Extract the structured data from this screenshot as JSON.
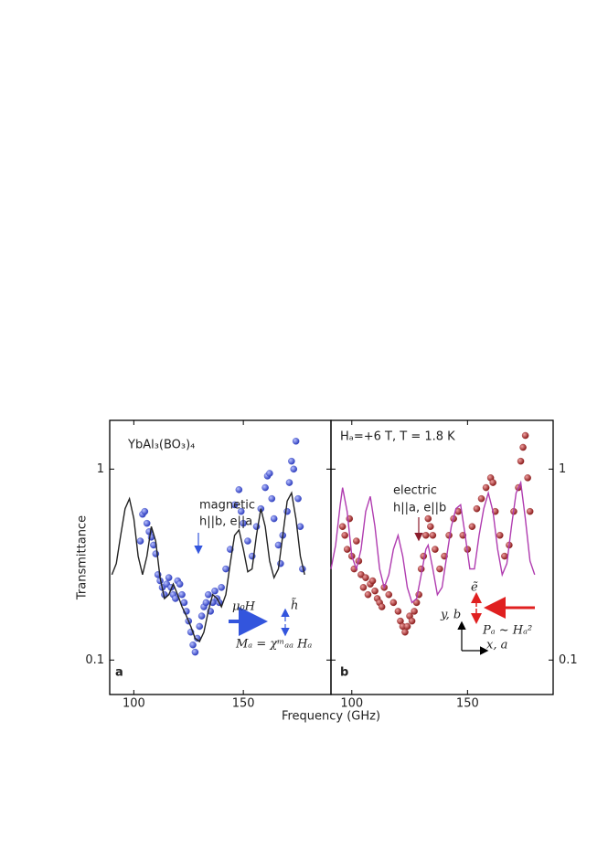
{
  "chart_data": [
    {
      "type": "scatter",
      "title": "YbAl₃(BO₃)₄",
      "panel_label": "a",
      "xlabel": "Frequency (GHz)",
      "ylabel": "Transmittance",
      "log_y": true,
      "xlim": [
        89,
        190
      ],
      "ylim": [
        0.066,
        1.8
      ],
      "xticks": [
        100,
        150
      ],
      "yticks": [
        0.1,
        1
      ],
      "annotations": [
        "magnetic",
        "h||b, e||a",
        "μ₀H",
        "h̃",
        "Mₐ = χᵐₐₐ Hₐ"
      ],
      "series": [
        {
          "mode": "markers",
          "color": "#2f3fbf",
          "x": [
            103,
            104,
            105,
            106,
            107,
            108,
            109,
            110,
            111,
            112,
            113,
            114,
            115,
            116,
            117,
            118,
            119,
            120,
            121,
            122,
            123,
            124,
            125,
            126,
            127,
            128,
            129,
            130,
            131,
            132,
            133,
            134,
            135,
            136,
            137,
            138,
            139,
            140,
            142,
            144,
            146,
            148,
            149,
            150,
            152,
            154,
            156,
            158,
            160,
            161,
            162,
            163,
            164,
            166,
            167,
            168,
            170,
            171,
            172,
            173,
            174,
            175,
            176,
            177
          ],
          "values": [
            0.42,
            0.58,
            0.6,
            0.52,
            0.47,
            0.44,
            0.4,
            0.36,
            0.28,
            0.26,
            0.24,
            0.22,
            0.25,
            0.27,
            0.24,
            0.22,
            0.21,
            0.26,
            0.25,
            0.22,
            0.2,
            0.18,
            0.16,
            0.14,
            0.12,
            0.11,
            0.13,
            0.15,
            0.17,
            0.19,
            0.2,
            0.22,
            0.18,
            0.2,
            0.23,
            0.21,
            0.2,
            0.24,
            0.3,
            0.38,
            0.65,
            0.78,
            0.6,
            0.52,
            0.42,
            0.35,
            0.5,
            0.62,
            0.8,
            0.92,
            0.95,
            0.7,
            0.55,
            0.4,
            0.32,
            0.45,
            0.6,
            0.85,
            1.1,
            1.0,
            1.4,
            0.7,
            0.5,
            0.3
          ]
        },
        {
          "mode": "line",
          "color": "#222222",
          "x": [
            90,
            92,
            94,
            96,
            98,
            100,
            102,
            104,
            106,
            108,
            110,
            112,
            114,
            116,
            118,
            120,
            122,
            124,
            126,
            128,
            130,
            132,
            134,
            136,
            138,
            140,
            142,
            144,
            146,
            148,
            150,
            152,
            154,
            156,
            158,
            160,
            162,
            164,
            166,
            168,
            170,
            172,
            174,
            176,
            178
          ],
          "values": [
            0.28,
            0.32,
            0.45,
            0.62,
            0.7,
            0.55,
            0.35,
            0.28,
            0.35,
            0.5,
            0.42,
            0.27,
            0.21,
            0.22,
            0.25,
            0.22,
            0.19,
            0.17,
            0.15,
            0.13,
            0.125,
            0.14,
            0.18,
            0.22,
            0.21,
            0.19,
            0.22,
            0.32,
            0.45,
            0.48,
            0.38,
            0.29,
            0.3,
            0.45,
            0.62,
            0.5,
            0.33,
            0.27,
            0.3,
            0.45,
            0.68,
            0.75,
            0.55,
            0.35,
            0.28
          ]
        }
      ]
    },
    {
      "type": "scatter",
      "title": "Hₐ=+6 T,  T = 1.8 K",
      "panel_label": "b",
      "log_y": true,
      "xlim": [
        91,
        187
      ],
      "ylim": [
        0.066,
        1.8
      ],
      "xticks": [
        100,
        150
      ],
      "yticks": [
        0.1,
        1
      ],
      "annotations": [
        "electric",
        "h||a, e||b",
        "ẽ",
        "Pₐ ~ Hₐ²",
        "y, b",
        "x, a"
      ],
      "series": [
        {
          "mode": "markers",
          "color": "#8b1c1c",
          "x": [
            96,
            97,
            98,
            99,
            100,
            101,
            102,
            103,
            104,
            105,
            106,
            107,
            108,
            109,
            110,
            111,
            112,
            113,
            114,
            116,
            118,
            120,
            121,
            122,
            123,
            124,
            125,
            126,
            127,
            128,
            129,
            130,
            131,
            132,
            133,
            134,
            135,
            136,
            138,
            140,
            142,
            144,
            146,
            148,
            150,
            152,
            154,
            156,
            158,
            160,
            161,
            162,
            164,
            166,
            168,
            170,
            172,
            173,
            174,
            175,
            176,
            177
          ],
          "values": [
            0.5,
            0.45,
            0.38,
            0.55,
            0.35,
            0.3,
            0.42,
            0.33,
            0.28,
            0.24,
            0.27,
            0.22,
            0.25,
            0.26,
            0.23,
            0.21,
            0.2,
            0.19,
            0.24,
            0.22,
            0.2,
            0.18,
            0.16,
            0.15,
            0.14,
            0.15,
            0.17,
            0.16,
            0.18,
            0.2,
            0.22,
            0.3,
            0.35,
            0.45,
            0.55,
            0.5,
            0.45,
            0.38,
            0.3,
            0.35,
            0.45,
            0.55,
            0.6,
            0.45,
            0.38,
            0.5,
            0.62,
            0.7,
            0.8,
            0.9,
            0.85,
            0.6,
            0.45,
            0.35,
            0.4,
            0.6,
            0.8,
            1.1,
            1.3,
            1.5,
            0.9,
            0.6
          ]
        },
        {
          "mode": "line",
          "color": "#b03cb0",
          "x": [
            91,
            93,
            95,
            96,
            98,
            100,
            102,
            104,
            106,
            108,
            110,
            112,
            114,
            116,
            118,
            120,
            122,
            124,
            126,
            128,
            130,
            132,
            133,
            135,
            137,
            139,
            141,
            143,
            145,
            147,
            149,
            151,
            153,
            155,
            157,
            159,
            161,
            163,
            165,
            167,
            169,
            171,
            173,
            175,
            177,
            179
          ],
          "values": [
            0.3,
            0.4,
            0.65,
            0.8,
            0.6,
            0.35,
            0.3,
            0.38,
            0.6,
            0.72,
            0.5,
            0.3,
            0.24,
            0.28,
            0.38,
            0.45,
            0.35,
            0.24,
            0.2,
            0.21,
            0.28,
            0.38,
            0.4,
            0.3,
            0.22,
            0.24,
            0.35,
            0.5,
            0.62,
            0.65,
            0.45,
            0.3,
            0.3,
            0.45,
            0.62,
            0.75,
            0.6,
            0.38,
            0.28,
            0.32,
            0.5,
            0.75,
            0.85,
            0.55,
            0.33,
            0.28
          ]
        }
      ]
    }
  ]
}
